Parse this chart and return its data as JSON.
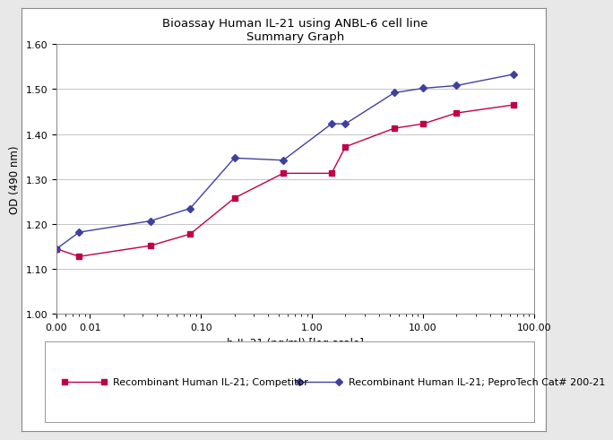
{
  "title_line1": "Bioassay Human IL-21 using ANBL-6 cell line",
  "title_line2": "Summary Graph",
  "xlabel": "h-IL-21 (ng/ml) [log scale]",
  "ylabel": "OD (490 nm)",
  "ylim": [
    1.0,
    1.6
  ],
  "yticks": [
    1.0,
    1.1,
    1.2,
    1.3,
    1.4,
    1.5,
    1.6
  ],
  "xtick_labels": [
    "0.00",
    "0.01",
    "0.10",
    "1.00",
    "10.00",
    "100.00"
  ],
  "xtick_values": [
    0.005,
    0.01,
    0.1,
    1.0,
    10.0,
    100.0
  ],
  "competitor_x": [
    0.005,
    0.008,
    0.035,
    0.08,
    0.2,
    0.55,
    1.5,
    2.0,
    5.5,
    10.0,
    20.0,
    65.0
  ],
  "competitor_y": [
    1.145,
    1.128,
    1.152,
    1.178,
    1.258,
    1.313,
    1.313,
    1.372,
    1.413,
    1.423,
    1.447,
    1.465
  ],
  "competitor_color": "#C0004B",
  "competitor_label": "Recombinant Human IL-21; Competitor",
  "peprotech_x": [
    0.005,
    0.008,
    0.035,
    0.08,
    0.2,
    0.55,
    1.5,
    2.0,
    5.5,
    10.0,
    20.0,
    65.0
  ],
  "peprotech_y": [
    1.145,
    1.182,
    1.207,
    1.235,
    1.347,
    1.342,
    1.423,
    1.423,
    1.492,
    1.502,
    1.508,
    1.533
  ],
  "peprotech_color": "#4040A0",
  "peprotech_label": "Recombinant Human IL-21; PeproTech Cat# 200-21",
  "fig_bg_color": "#E8E8E8",
  "box_bg_color": "#FFFFFF",
  "plot_bg_color": "#FFFFFF",
  "grid_color": "#BBBBBB",
  "title_fontsize": 9.5,
  "axis_label_fontsize": 8.5,
  "tick_fontsize": 8,
  "legend_fontsize": 8
}
